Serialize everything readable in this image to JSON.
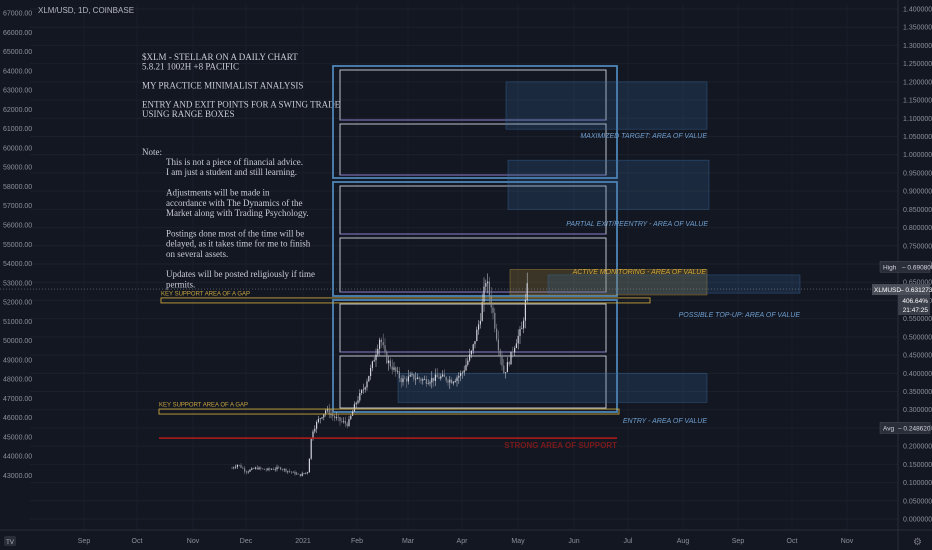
{
  "header": {
    "symbol": "XLM/USD, 1D, COINBASE"
  },
  "tv_logo": "TV",
  "notes": [
    "$XLM - STELLAR ON A DAILY CHART",
    "5.8.21 1002H +8 PACIFIC",
    "",
    "MY PRACTICE MINIMALIST ANALYSIS",
    "",
    "ENTRY AND EXIT POINTS FOR A SWING TRADE",
    "USING RANGE BOXES"
  ],
  "note_heading": "Note:",
  "note_body": [
    "This is not a piece of financial advice.",
    "I am just a student and still learning.",
    "",
    "Adjustments will be made in",
    "accordance with The Dynamics of the",
    "Market along with Trading Psychology.",
    "",
    "Postings done most of the time will be",
    "delayed, as it takes time for me to finish",
    "on several assets.",
    "",
    "Updates will be posted religiously if time",
    "permits."
  ],
  "zones": [
    {
      "label": "MAXIMIZED TARGET: AREA OF VALUE",
      "from": 1.07,
      "to": 1.2,
      "color": "#3a6ea5"
    },
    {
      "label": "PARTIAL EXIT/REENTRY - AREA OF VALUE",
      "from": 0.85,
      "to": 0.985,
      "color": "#3a6ea5"
    },
    {
      "label": "ACTIVE MONITORING - AREA OF VALUE",
      "from": 0.615,
      "to": 0.685,
      "color": "#c8a43c"
    },
    {
      "label": "POSSIBLE TOP-UP: AREA OF VALUE",
      "from": 0.62,
      "to": 0.67,
      "color": "#3a6ea5"
    },
    {
      "label": "ENTRY - AREA OF VALUE",
      "from": 0.32,
      "to": 0.4,
      "color": "#3a6ea5"
    }
  ],
  "support_lines": [
    {
      "label": "KEY SUPPORT AREA OF A GAP",
      "price": 0.6,
      "color": "#c8a43c"
    },
    {
      "label": "KEY SUPPORT AREA OF A GAP",
      "price": 0.295,
      "color": "#c8a43c"
    },
    {
      "label": "STRONG AREA OF SUPPORT",
      "price": 0.222,
      "color": "#b71c1c"
    }
  ],
  "badges": {
    "high_label": "High",
    "high_value": "0.690800",
    "last_label": "XLMUSD",
    "last_value": "0.631273",
    "last_pct": "406.64%",
    "last_time": "21:47:25",
    "avg_label": "Avg",
    "avg_value": "0.248620"
  },
  "chart_data": {
    "type": "candlestick",
    "title": "XLM/USD, 1D, COINBASE",
    "x_ticks": [
      "Sep",
      "Oct",
      "Nov",
      "Dec",
      "2021",
      "Feb",
      "Mar",
      "Apr",
      "May",
      "Jun",
      "Jul",
      "Aug",
      "Sep",
      "Oct",
      "Nov"
    ],
    "right_axis_ticks": [
      "1.400000",
      "1.350000",
      "1.300000",
      "1.250000",
      "1.200000",
      "1.150000",
      "1.100000",
      "1.050000",
      "1.000000",
      "0.950000",
      "0.900000",
      "0.850000",
      "0.800000",
      "0.750000",
      "0.700000",
      "0.650000",
      "0.600000",
      "0.550000",
      "0.500000",
      "0.450000",
      "0.400000",
      "0.350000",
      "0.300000",
      "0.250000",
      "0.200000",
      "0.150000",
      "0.100000",
      "0.050000",
      "0.000000"
    ],
    "left_axis_ticks": [
      "67000.00",
      "66000.00",
      "65000.00",
      "64000.00",
      "63000.00",
      "62000.00",
      "61000.00",
      "60000.00",
      "59000.00",
      "58000.00",
      "57000.00",
      "56000.00",
      "55000.00",
      "54000.00",
      "53000.00",
      "52000.00",
      "51000.00",
      "50000.00",
      "49000.00",
      "48000.00",
      "47000.00",
      "46000.00",
      "45000.00",
      "44000.00",
      "43000.00"
    ],
    "y_range": [
      0,
      1.4
    ],
    "monthly_closes": [
      {
        "month": "Dec 2020",
        "price": 0.14
      },
      {
        "month": "Jan 2021",
        "price": 0.28
      },
      {
        "month": "Feb 2021",
        "price": 0.45
      },
      {
        "month": "Mar 2021",
        "price": 0.4
      },
      {
        "month": "Apr 2021",
        "price": 0.5
      },
      {
        "month": "May 2021",
        "price": 0.63
      }
    ],
    "high": 0.6908,
    "last": 0.631273,
    "avg": 0.24862
  }
}
